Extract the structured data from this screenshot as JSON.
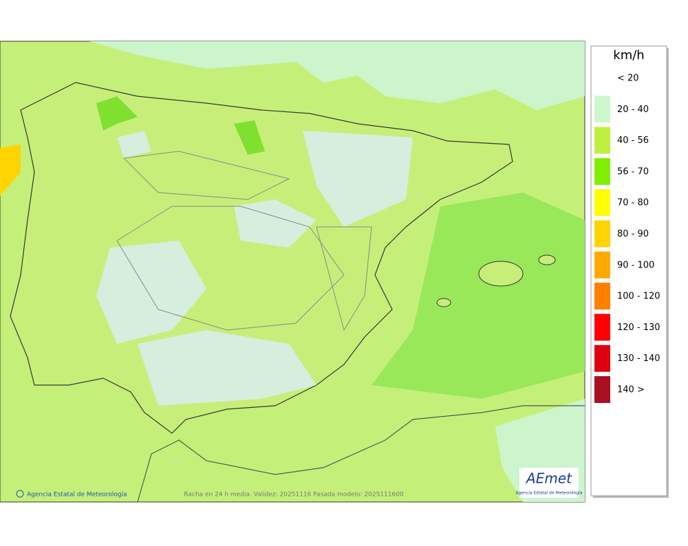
{
  "legend": {
    "title": "km/h",
    "items": [
      {
        "label": "< 20",
        "color": null
      },
      {
        "label": "20 - 40",
        "color": "#ccf8cc"
      },
      {
        "label": "40 - 56",
        "color": "#bff040"
      },
      {
        "label": "56 - 70",
        "color": "#80f000"
      },
      {
        "label": "70 - 80",
        "color": "#ffff00"
      },
      {
        "label": "80 - 90",
        "color": "#ffd400"
      },
      {
        "label": "90 - 100",
        "color": "#ffaa00"
      },
      {
        "label": "100 - 120",
        "color": "#ff8000"
      },
      {
        "label": "120 - 130",
        "color": "#ff0000"
      },
      {
        "label": "130 - 140",
        "color": "#dd0010"
      },
      {
        "label": "140 >",
        "color": "#aa1020"
      }
    ]
  },
  "footer": {
    "credit": "Agencia Estatal de Meteorología",
    "caption": "Racha en 24 h media. Validez: 20251116 Pasada modelo: 2025111600"
  },
  "logo": {
    "name": "AEmet",
    "subtitle": "Agencia Estatal de Meteorología"
  }
}
